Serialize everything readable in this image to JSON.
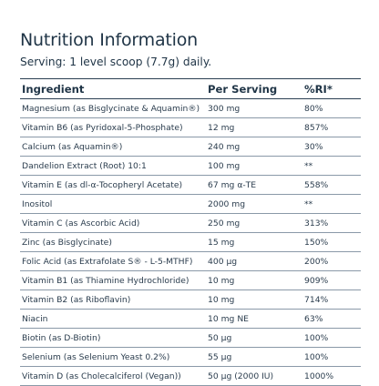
{
  "title": "Nutrition Information",
  "serving": "Serving: 1 level scoop (7.7g) daily.",
  "headers": {
    "ingredient": "Ingredient",
    "per_serving": "Per Serving",
    "ri": "%RI*"
  },
  "rows": [
    {
      "ingredient": "Magnesium (as Bisglycinate & Aquamin®)",
      "per_serving": "300 mg",
      "ri": "80%"
    },
    {
      "ingredient": "Vitamin B6 (as Pyridoxal-5-Phosphate)",
      "per_serving": "12 mg",
      "ri": "857%"
    },
    {
      "ingredient": "Calcium (as Aquamin®)",
      "per_serving": "240 mg",
      "ri": "30%"
    },
    {
      "ingredient": "Dandelion Extract (Root) 10:1",
      "per_serving": "100 mg",
      "ri": "**"
    },
    {
      "ingredient": "Vitamin E (as dl-α-Tocopheryl Acetate)",
      "per_serving": "67 mg α-TE",
      "ri": "558%"
    },
    {
      "ingredient": "Inositol",
      "per_serving": "2000 mg",
      "ri": "**"
    },
    {
      "ingredient": "Vitamin C (as Ascorbic Acid)",
      "per_serving": "250 mg",
      "ri": "313%"
    },
    {
      "ingredient": "Zinc (as Bisglycinate)",
      "per_serving": "15 mg",
      "ri": "150%"
    },
    {
      "ingredient": "Folic Acid (as Extrafolate S® - L-5-MTHF)",
      "per_serving": "400 µg",
      "ri": "200%"
    },
    {
      "ingredient": "Vitamin B1 (as Thiamine Hydrochloride)",
      "per_serving": "10 mg",
      "ri": "909%"
    },
    {
      "ingredient": "Vitamin B2 (as Riboflavin)",
      "per_serving": "10 mg",
      "ri": "714%"
    },
    {
      "ingredient": "Niacin",
      "per_serving": "10 mg NE",
      "ri": "63%"
    },
    {
      "ingredient": "Biotin (as D-Biotin)",
      "per_serving": "50 µg",
      "ri": "100%"
    },
    {
      "ingredient": "Selenium (as Selenium Yeast 0.2%)",
      "per_serving": "55 µg",
      "ri": "100%"
    },
    {
      "ingredient": "Vitamin D (as Cholecalciferol (Vegan))",
      "per_serving": "50 µg (2000 IU)",
      "ri": "1000%"
    }
  ]
}
